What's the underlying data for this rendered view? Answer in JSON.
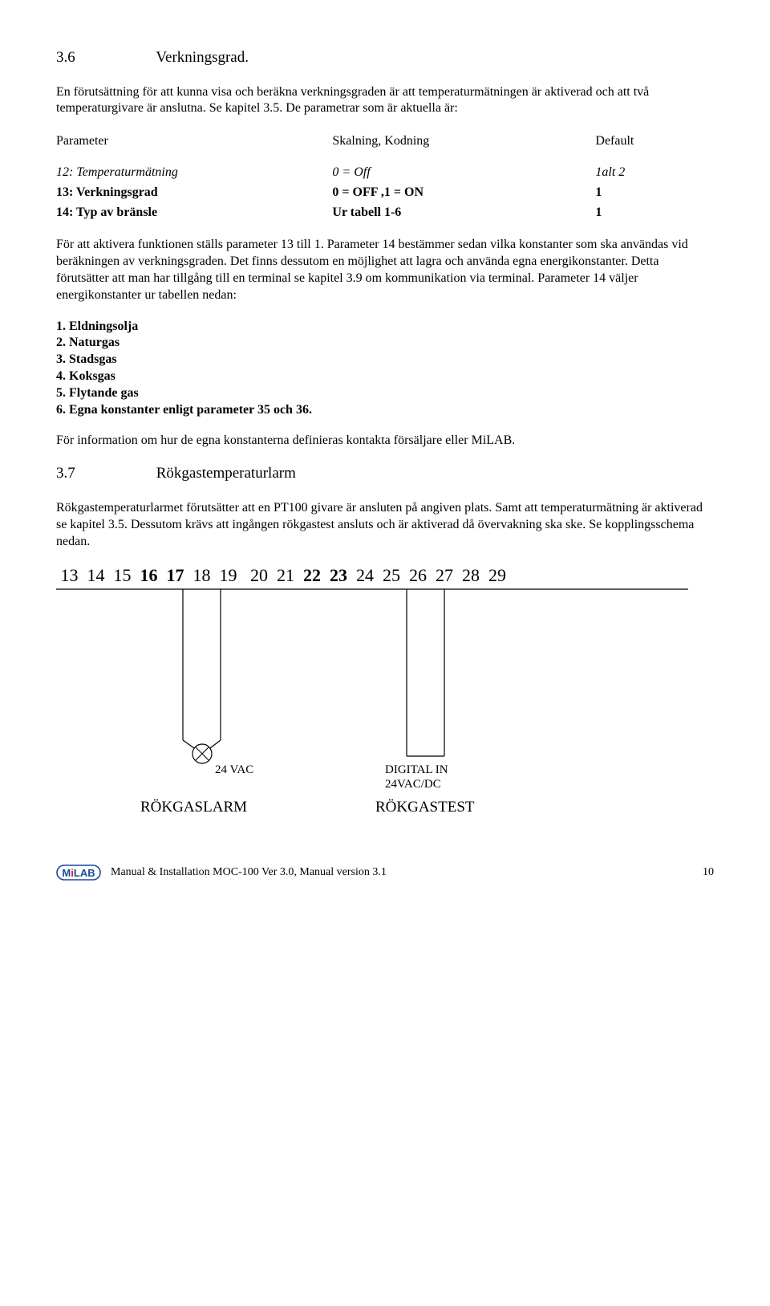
{
  "section36": {
    "num": "3.6",
    "title": "Verkningsgrad.",
    "p1": "En förutsättning för att kunna visa och beräkna verkningsgraden är att temperaturmätningen är aktiverad och att två temperaturgivare är anslutna. Se kapitel 3.5. De parametrar som är aktuella är:",
    "table": {
      "head": [
        "Parameter",
        "Skalning, Kodning",
        "Default"
      ],
      "rows": [
        [
          "12: Temperaturmätning",
          "0 = Off",
          "1alt 2"
        ],
        [
          "13: Verkningsgrad",
          "0 = OFF ,1 = ON",
          "1"
        ],
        [
          "14: Typ av bränsle",
          "Ur tabell 1-6",
          "1"
        ]
      ]
    },
    "p2": "För att aktivera funktionen ställs parameter 13 till 1. Parameter 14 bestämmer sedan vilka konstanter som ska användas vid beräkningen av verkningsgraden. Det finns dessutom en möjlighet att lagra och använda egna energikonstanter. Detta förutsätter att man har tillgång till en terminal se kapitel 3.9 om kommunikation via terminal. Parameter 14 väljer energikonstanter ur tabellen nedan:",
    "fuels": [
      "1. Eldningsolja",
      "2. Naturgas",
      "3. Stadsgas",
      "4. Koksgas",
      "5. Flytande gas",
      "6. Egna konstanter enligt parameter 35 och 36."
    ],
    "p3": "För information om hur de egna konstanterna definieras kontakta försäljare eller MiLAB."
  },
  "section37": {
    "num": "3.7",
    "title": "Rökgastemperaturlarm",
    "p1": "Rökgastemperaturlarmet förutsätter att en PT100 givare är ansluten på angiven plats. Samt att temperaturmätning är aktiverad se kapitel 3.5. Dessutom krävs att ingången rökgastest ansluts och är aktiverad då övervakning ska ske. Se kopplingsschema nedan."
  },
  "terminals": [
    "13",
    "14",
    "15",
    "16",
    "17",
    "18",
    "19",
    "20",
    "21",
    "22",
    "23",
    "24",
    "25",
    "26",
    "27",
    "28",
    "29"
  ],
  "terminals_bold": [
    false,
    false,
    false,
    true,
    true,
    false,
    false,
    false,
    false,
    true,
    true,
    false,
    false,
    false,
    false,
    false,
    false
  ],
  "diagram": {
    "line_color": "#000000",
    "circle_fill": "#ffffff",
    "vac_label": "24 VAC",
    "digital_in_1": "DIGITAL IN",
    "digital_in_2": "24VAC/DC",
    "left_label": "RÖKGASLARM",
    "right_label": "RÖKGASTEST"
  },
  "footer": {
    "logo_text": "MiLAB",
    "logo_colors": {
      "bg": "#ffffff",
      "border": "#1a4aa0",
      "text": "#1a4aa0",
      "red": "#d02020"
    },
    "text": "Manual & Installation  MOC-100 Ver 3.0, Manual version 3.1",
    "page": "10"
  }
}
